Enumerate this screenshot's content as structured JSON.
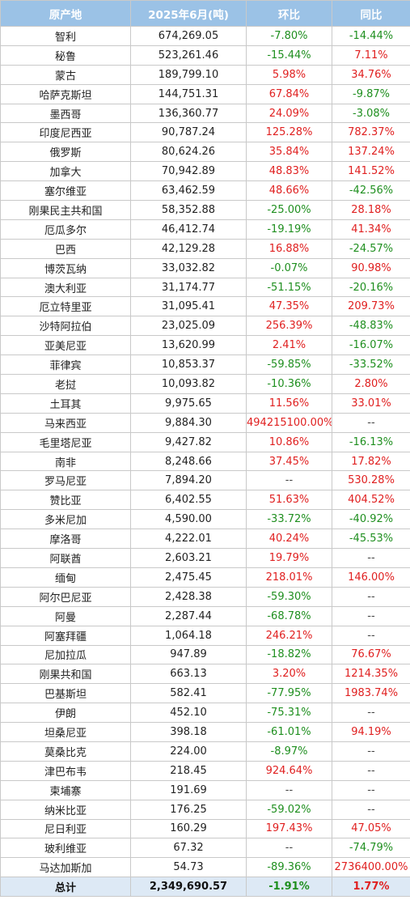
{
  "header": {
    "origin": "原产地",
    "amount": "2025年6月(吨)",
    "mom": "环比",
    "yoy": "同比"
  },
  "rows": [
    {
      "origin": "智利",
      "amount": "674,269.05",
      "mom": "-7.80%",
      "yoy": "-14.44%"
    },
    {
      "origin": "秘鲁",
      "amount": "523,261.46",
      "mom": "-15.44%",
      "yoy": "7.11%"
    },
    {
      "origin": "蒙古",
      "amount": "189,799.10",
      "mom": "5.98%",
      "yoy": "34.76%"
    },
    {
      "origin": "哈萨克斯坦",
      "amount": "144,751.31",
      "mom": "67.84%",
      "yoy": "-9.87%"
    },
    {
      "origin": "墨西哥",
      "amount": "136,360.77",
      "mom": "24.09%",
      "yoy": "-3.08%"
    },
    {
      "origin": "印度尼西亚",
      "amount": "90,787.24",
      "mom": "125.28%",
      "yoy": "782.37%"
    },
    {
      "origin": "俄罗斯",
      "amount": "80,624.26",
      "mom": "35.84%",
      "yoy": "137.24%"
    },
    {
      "origin": "加拿大",
      "amount": "70,942.89",
      "mom": "48.83%",
      "yoy": "141.52%"
    },
    {
      "origin": "塞尔维亚",
      "amount": "63,462.59",
      "mom": "48.66%",
      "yoy": "-42.56%"
    },
    {
      "origin": "刚果民主共和国",
      "amount": "58,352.88",
      "mom": "-25.00%",
      "yoy": "28.18%"
    },
    {
      "origin": "厄瓜多尔",
      "amount": "46,412.74",
      "mom": "-19.19%",
      "yoy": "41.34%"
    },
    {
      "origin": "巴西",
      "amount": "42,129.28",
      "mom": "16.88%",
      "yoy": "-24.57%"
    },
    {
      "origin": "博茨瓦纳",
      "amount": "33,032.82",
      "mom": "-0.07%",
      "yoy": "90.98%"
    },
    {
      "origin": "澳大利亚",
      "amount": "31,174.77",
      "mom": "-51.15%",
      "yoy": "-20.16%"
    },
    {
      "origin": "厄立特里亚",
      "amount": "31,095.41",
      "mom": "47.35%",
      "yoy": "209.73%"
    },
    {
      "origin": "沙特阿拉伯",
      "amount": "23,025.09",
      "mom": "256.39%",
      "yoy": "-48.83%"
    },
    {
      "origin": "亚美尼亚",
      "amount": "13,620.99",
      "mom": "2.41%",
      "yoy": "-16.07%"
    },
    {
      "origin": "菲律宾",
      "amount": "10,853.37",
      "mom": "-59.85%",
      "yoy": "-33.52%"
    },
    {
      "origin": "老挝",
      "amount": "10,093.82",
      "mom": "-10.36%",
      "yoy": "2.80%"
    },
    {
      "origin": "土耳其",
      "amount": "9,975.65",
      "mom": "11.56%",
      "yoy": "33.01%"
    },
    {
      "origin": "马来西亚",
      "amount": "9,884.30",
      "mom": "494215100.00%",
      "yoy": "--"
    },
    {
      "origin": "毛里塔尼亚",
      "amount": "9,427.82",
      "mom": "10.86%",
      "yoy": "-16.13%"
    },
    {
      "origin": "南非",
      "amount": "8,248.66",
      "mom": "37.45%",
      "yoy": "17.82%"
    },
    {
      "origin": "罗马尼亚",
      "amount": "7,894.20",
      "mom": "--",
      "yoy": "530.28%"
    },
    {
      "origin": "赞比亚",
      "amount": "6,402.55",
      "mom": "51.63%",
      "yoy": "404.52%"
    },
    {
      "origin": "多米尼加",
      "amount": "4,590.00",
      "mom": "-33.72%",
      "yoy": "-40.92%"
    },
    {
      "origin": "摩洛哥",
      "amount": "4,222.01",
      "mom": "40.24%",
      "yoy": "-45.53%"
    },
    {
      "origin": "阿联酋",
      "amount": "2,603.21",
      "mom": "19.79%",
      "yoy": "--"
    },
    {
      "origin": "缅甸",
      "amount": "2,475.45",
      "mom": "218.01%",
      "yoy": "146.00%"
    },
    {
      "origin": "阿尔巴尼亚",
      "amount": "2,428.38",
      "mom": "-59.30%",
      "yoy": "--"
    },
    {
      "origin": "阿曼",
      "amount": "2,287.44",
      "mom": "-68.78%",
      "yoy": "--"
    },
    {
      "origin": "阿塞拜疆",
      "amount": "1,064.18",
      "mom": "246.21%",
      "yoy": "--"
    },
    {
      "origin": "尼加拉瓜",
      "amount": "947.89",
      "mom": "-18.82%",
      "yoy": "76.67%"
    },
    {
      "origin": "刚果共和国",
      "amount": "663.13",
      "mom": "3.20%",
      "yoy": "1214.35%"
    },
    {
      "origin": "巴基斯坦",
      "amount": "582.41",
      "mom": "-77.95%",
      "yoy": "1983.74%"
    },
    {
      "origin": "伊朗",
      "amount": "452.10",
      "mom": "-75.31%",
      "yoy": "--"
    },
    {
      "origin": "坦桑尼亚",
      "amount": "398.18",
      "mom": "-61.01%",
      "yoy": "94.19%"
    },
    {
      "origin": "莫桑比克",
      "amount": "224.00",
      "mom": "-8.97%",
      "yoy": "--"
    },
    {
      "origin": "津巴布韦",
      "amount": "218.45",
      "mom": "924.64%",
      "yoy": "--"
    },
    {
      "origin": "柬埔寨",
      "amount": "191.69",
      "mom": "--",
      "yoy": "--"
    },
    {
      "origin": "纳米比亚",
      "amount": "176.25",
      "mom": "-59.02%",
      "yoy": "--"
    },
    {
      "origin": "尼日利亚",
      "amount": "160.29",
      "mom": "197.43%",
      "yoy": "47.05%"
    },
    {
      "origin": "玻利维亚",
      "amount": "67.32",
      "mom": "--",
      "yoy": "-74.79%"
    },
    {
      "origin": "马达加斯加",
      "amount": "54.73",
      "mom": "-89.36%",
      "yoy": "2736400.00%"
    }
  ],
  "total": {
    "origin": "总计",
    "amount": "2,349,690.57",
    "mom": "-1.91%",
    "yoy": "1.77%"
  },
  "colors": {
    "header_bg": "#9bc2e6",
    "positive": "#e02020",
    "negative": "#1f8f1f",
    "total_bg": "#dde9f5"
  }
}
